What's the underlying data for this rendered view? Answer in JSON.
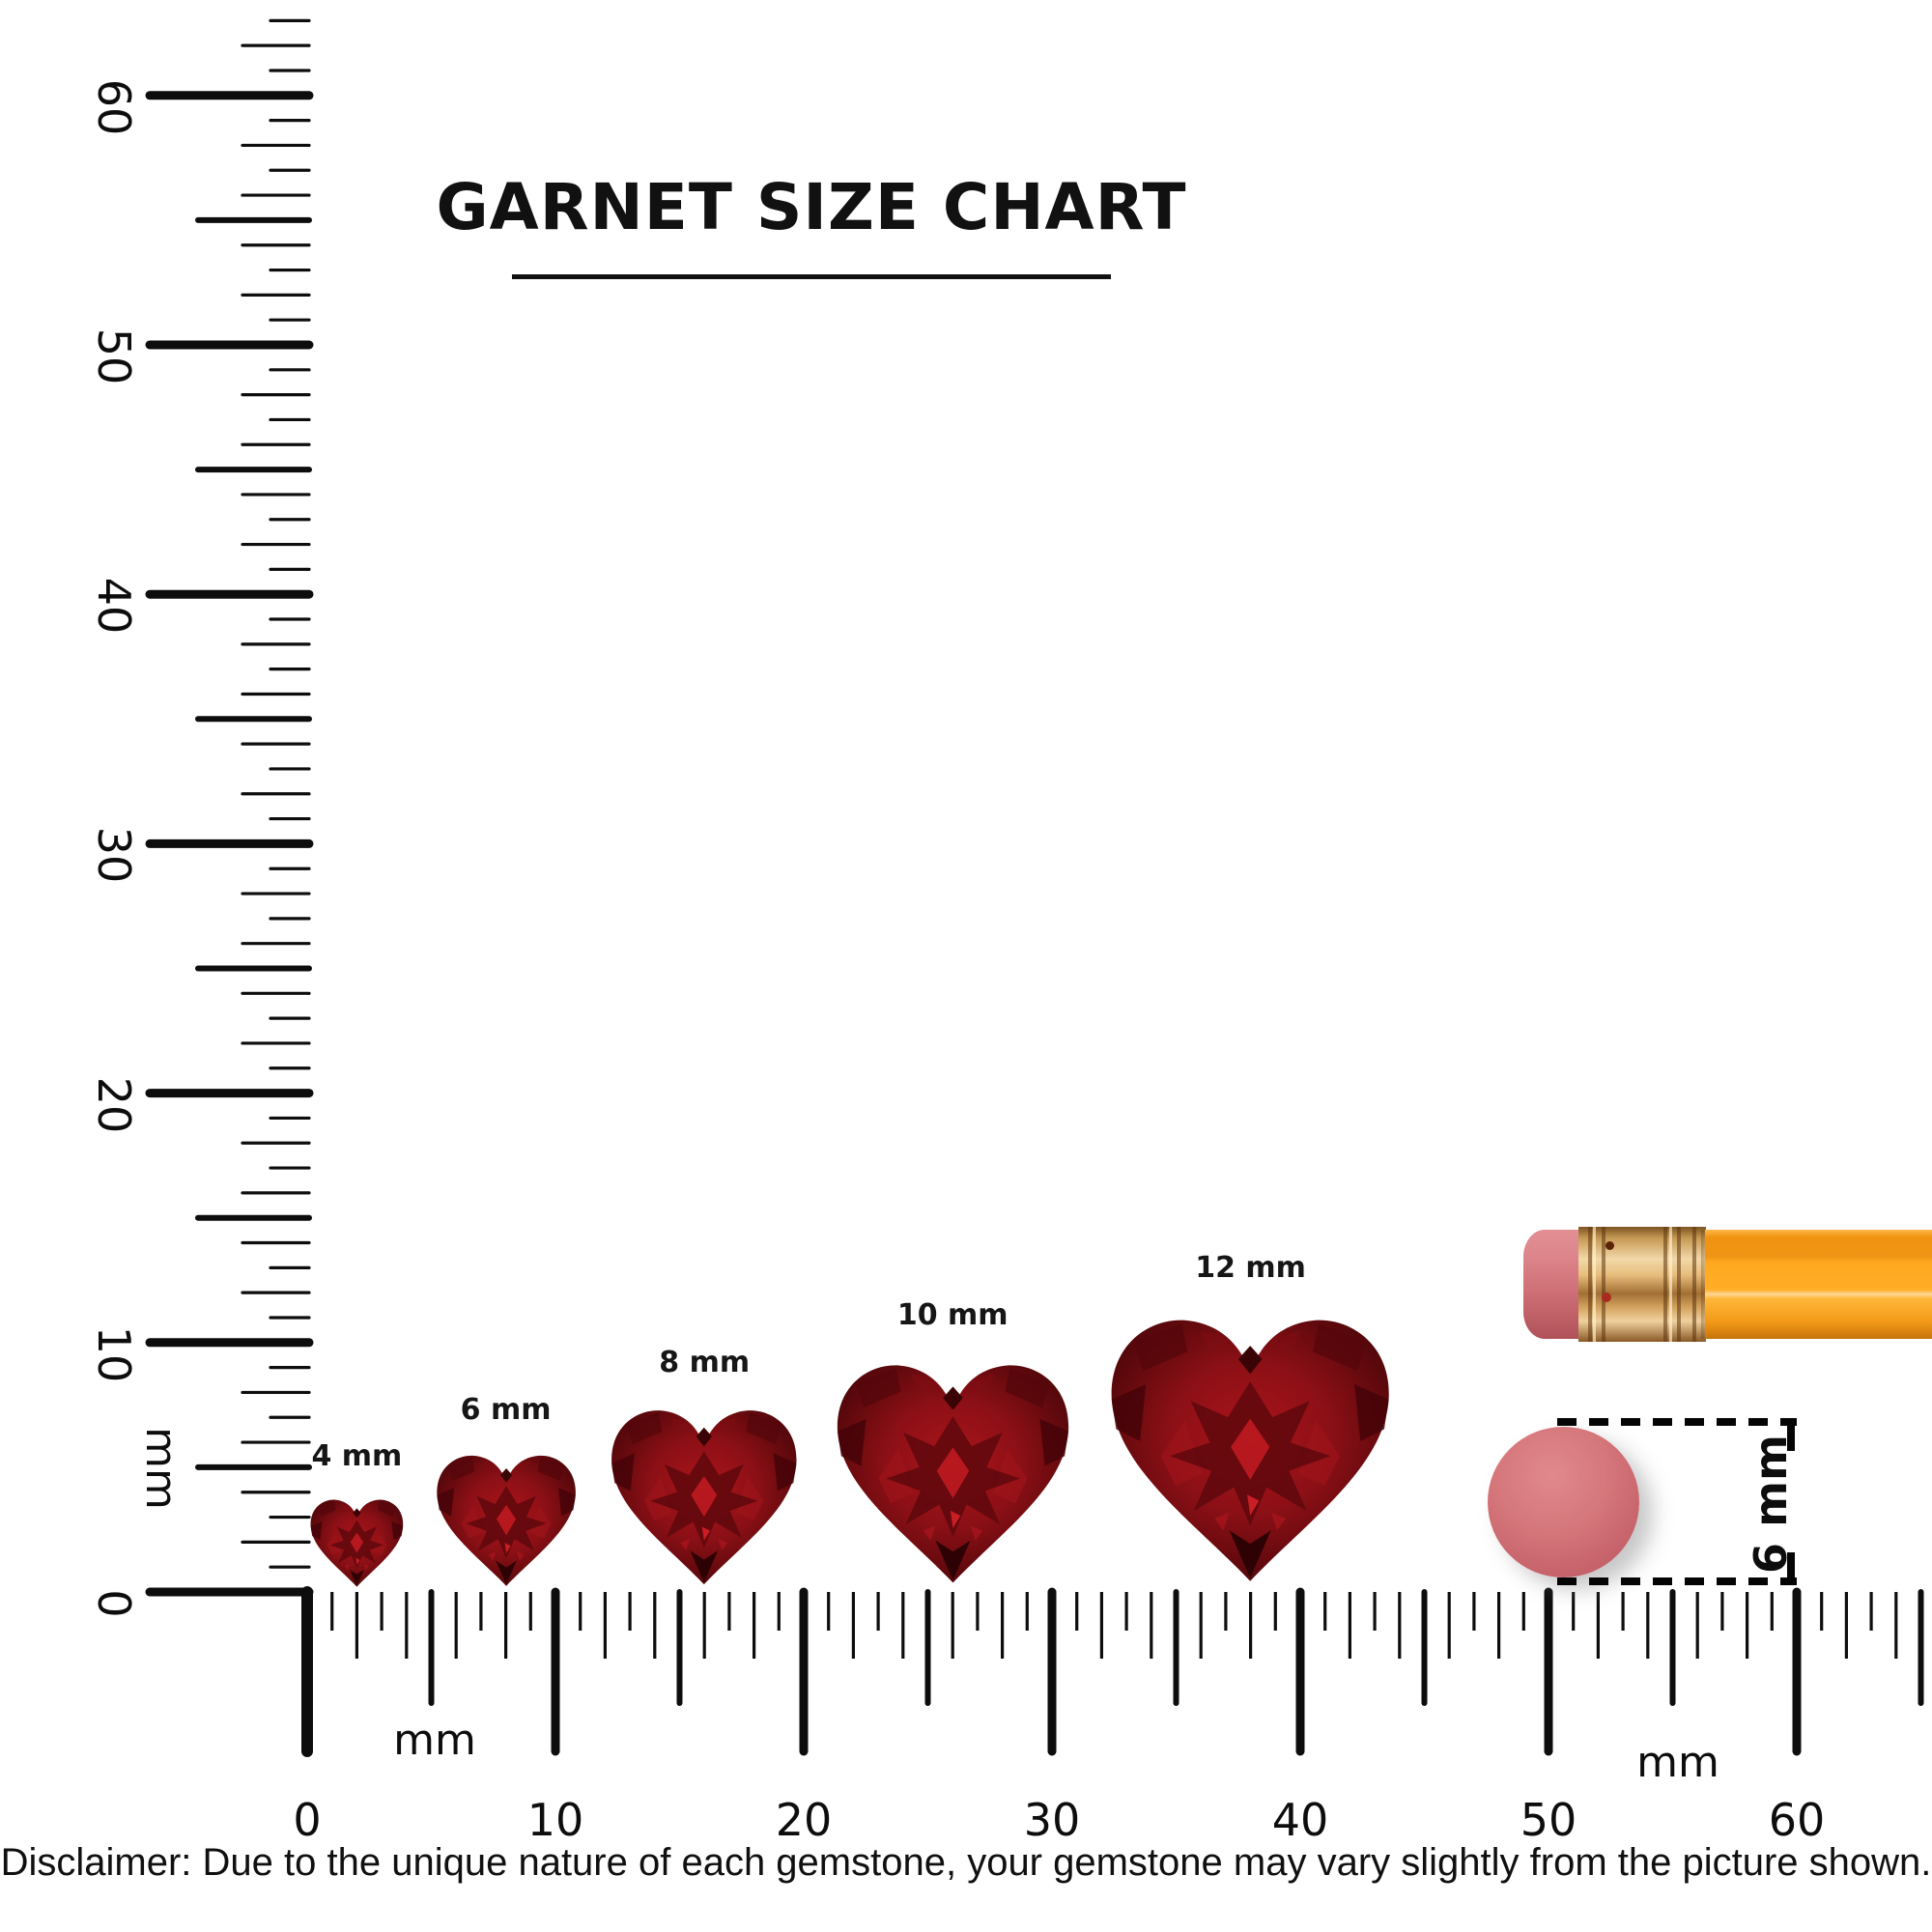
{
  "title": {
    "text": "GARNET SIZE CHART"
  },
  "gems": [
    {
      "label": "4 mm",
      "size_mm": 4
    },
    {
      "label": "6 mm",
      "size_mm": 6
    },
    {
      "label": "8 mm",
      "size_mm": 8
    },
    {
      "label": "10 mm",
      "size_mm": 10
    },
    {
      "label": "12 mm",
      "size_mm": 12
    }
  ],
  "vertical_ruler": {
    "unit_label": "mm",
    "min_mm": 0,
    "max_mm": 60,
    "tick_step_mm": 1,
    "number_step_mm": 10,
    "numbers": [
      "0",
      "10",
      "20",
      "30",
      "40",
      "50",
      "60"
    ]
  },
  "horizontal_ruler": {
    "unit_label_left": "mm",
    "unit_label_right": "mm",
    "min_mm": 0,
    "max_mm": 60,
    "tick_step_mm": 1,
    "number_step_mm": 10,
    "numbers": [
      "0",
      "10",
      "20",
      "30",
      "40",
      "50",
      "60"
    ]
  },
  "eraser_reference": {
    "dimension_label": "6 mm"
  },
  "disclaimer": {
    "text": "Disclaimer: Due to the unique nature of each gemstone, your gemstone may vary slightly from the picture shown."
  },
  "colors": {
    "ink": "#0d0d0d",
    "garnet_dark": "#3f0406",
    "garnet_mid": "#8c1016",
    "garnet_bright": "#c2191f",
    "pencil_body_orange": "#ffa81f",
    "ferrule_gold": "#d9a95f",
    "eraser_pink": "#d4757a"
  }
}
